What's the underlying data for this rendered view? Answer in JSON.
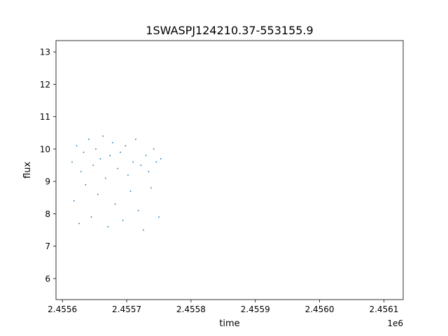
{
  "chart_data": {
    "type": "scatter",
    "title": "1SWASPJ124210.37-553155.9",
    "xlabel": "time",
    "ylabel": "flux",
    "x_offset_label": "1e6",
    "xlim": [
      2.45559,
      2.45613
    ],
    "ylim": [
      5.35,
      13.35
    ],
    "x_ticks": [
      2.4556,
      2.4557,
      2.4558,
      2.4559,
      2.456,
      2.4561
    ],
    "x_tick_labels": [
      "2.4556",
      "2.4557",
      "2.4558",
      "2.4559",
      "2.4560",
      "2.4561"
    ],
    "y_ticks": [
      6,
      7,
      8,
      9,
      10,
      11,
      12,
      13
    ],
    "y_tick_labels": [
      "6",
      "7",
      "8",
      "9",
      "10",
      "11",
      "12",
      "13"
    ],
    "marker_color": "#1f77b4",
    "grid": false,
    "series": [
      {
        "points": [
          [
            2.455615,
            9.6
          ],
          [
            2.455618,
            8.4
          ],
          [
            2.455622,
            10.1
          ],
          [
            2.455626,
            7.7
          ],
          [
            2.455629,
            9.3
          ],
          [
            2.455633,
            9.9
          ],
          [
            2.455636,
            8.9
          ],
          [
            2.455641,
            10.3
          ],
          [
            2.455645,
            7.9
          ],
          [
            2.455648,
            9.5
          ],
          [
            2.455652,
            10.0
          ],
          [
            2.455655,
            8.6
          ],
          [
            2.455659,
            9.7
          ],
          [
            2.455663,
            10.4
          ],
          [
            2.455667,
            9.1
          ],
          [
            2.455671,
            7.6
          ],
          [
            2.455674,
            9.8
          ],
          [
            2.455678,
            10.2
          ],
          [
            2.455682,
            8.3
          ],
          [
            2.455686,
            9.4
          ],
          [
            2.45569,
            9.9
          ],
          [
            2.455694,
            7.8
          ],
          [
            2.455698,
            10.1
          ],
          [
            2.455702,
            9.2
          ],
          [
            2.455706,
            8.7
          ],
          [
            2.45571,
            9.6
          ],
          [
            2.455714,
            10.3
          ],
          [
            2.455718,
            8.1
          ],
          [
            2.455722,
            9.5
          ],
          [
            2.455726,
            7.5
          ],
          [
            2.45573,
            9.8
          ],
          [
            2.455734,
            9.3
          ],
          [
            2.455738,
            8.8
          ],
          [
            2.455742,
            10.0
          ],
          [
            2.455746,
            9.6
          ],
          [
            2.45575,
            7.9
          ],
          [
            2.455753,
            9.7
          ]
        ]
      }
    ]
  }
}
